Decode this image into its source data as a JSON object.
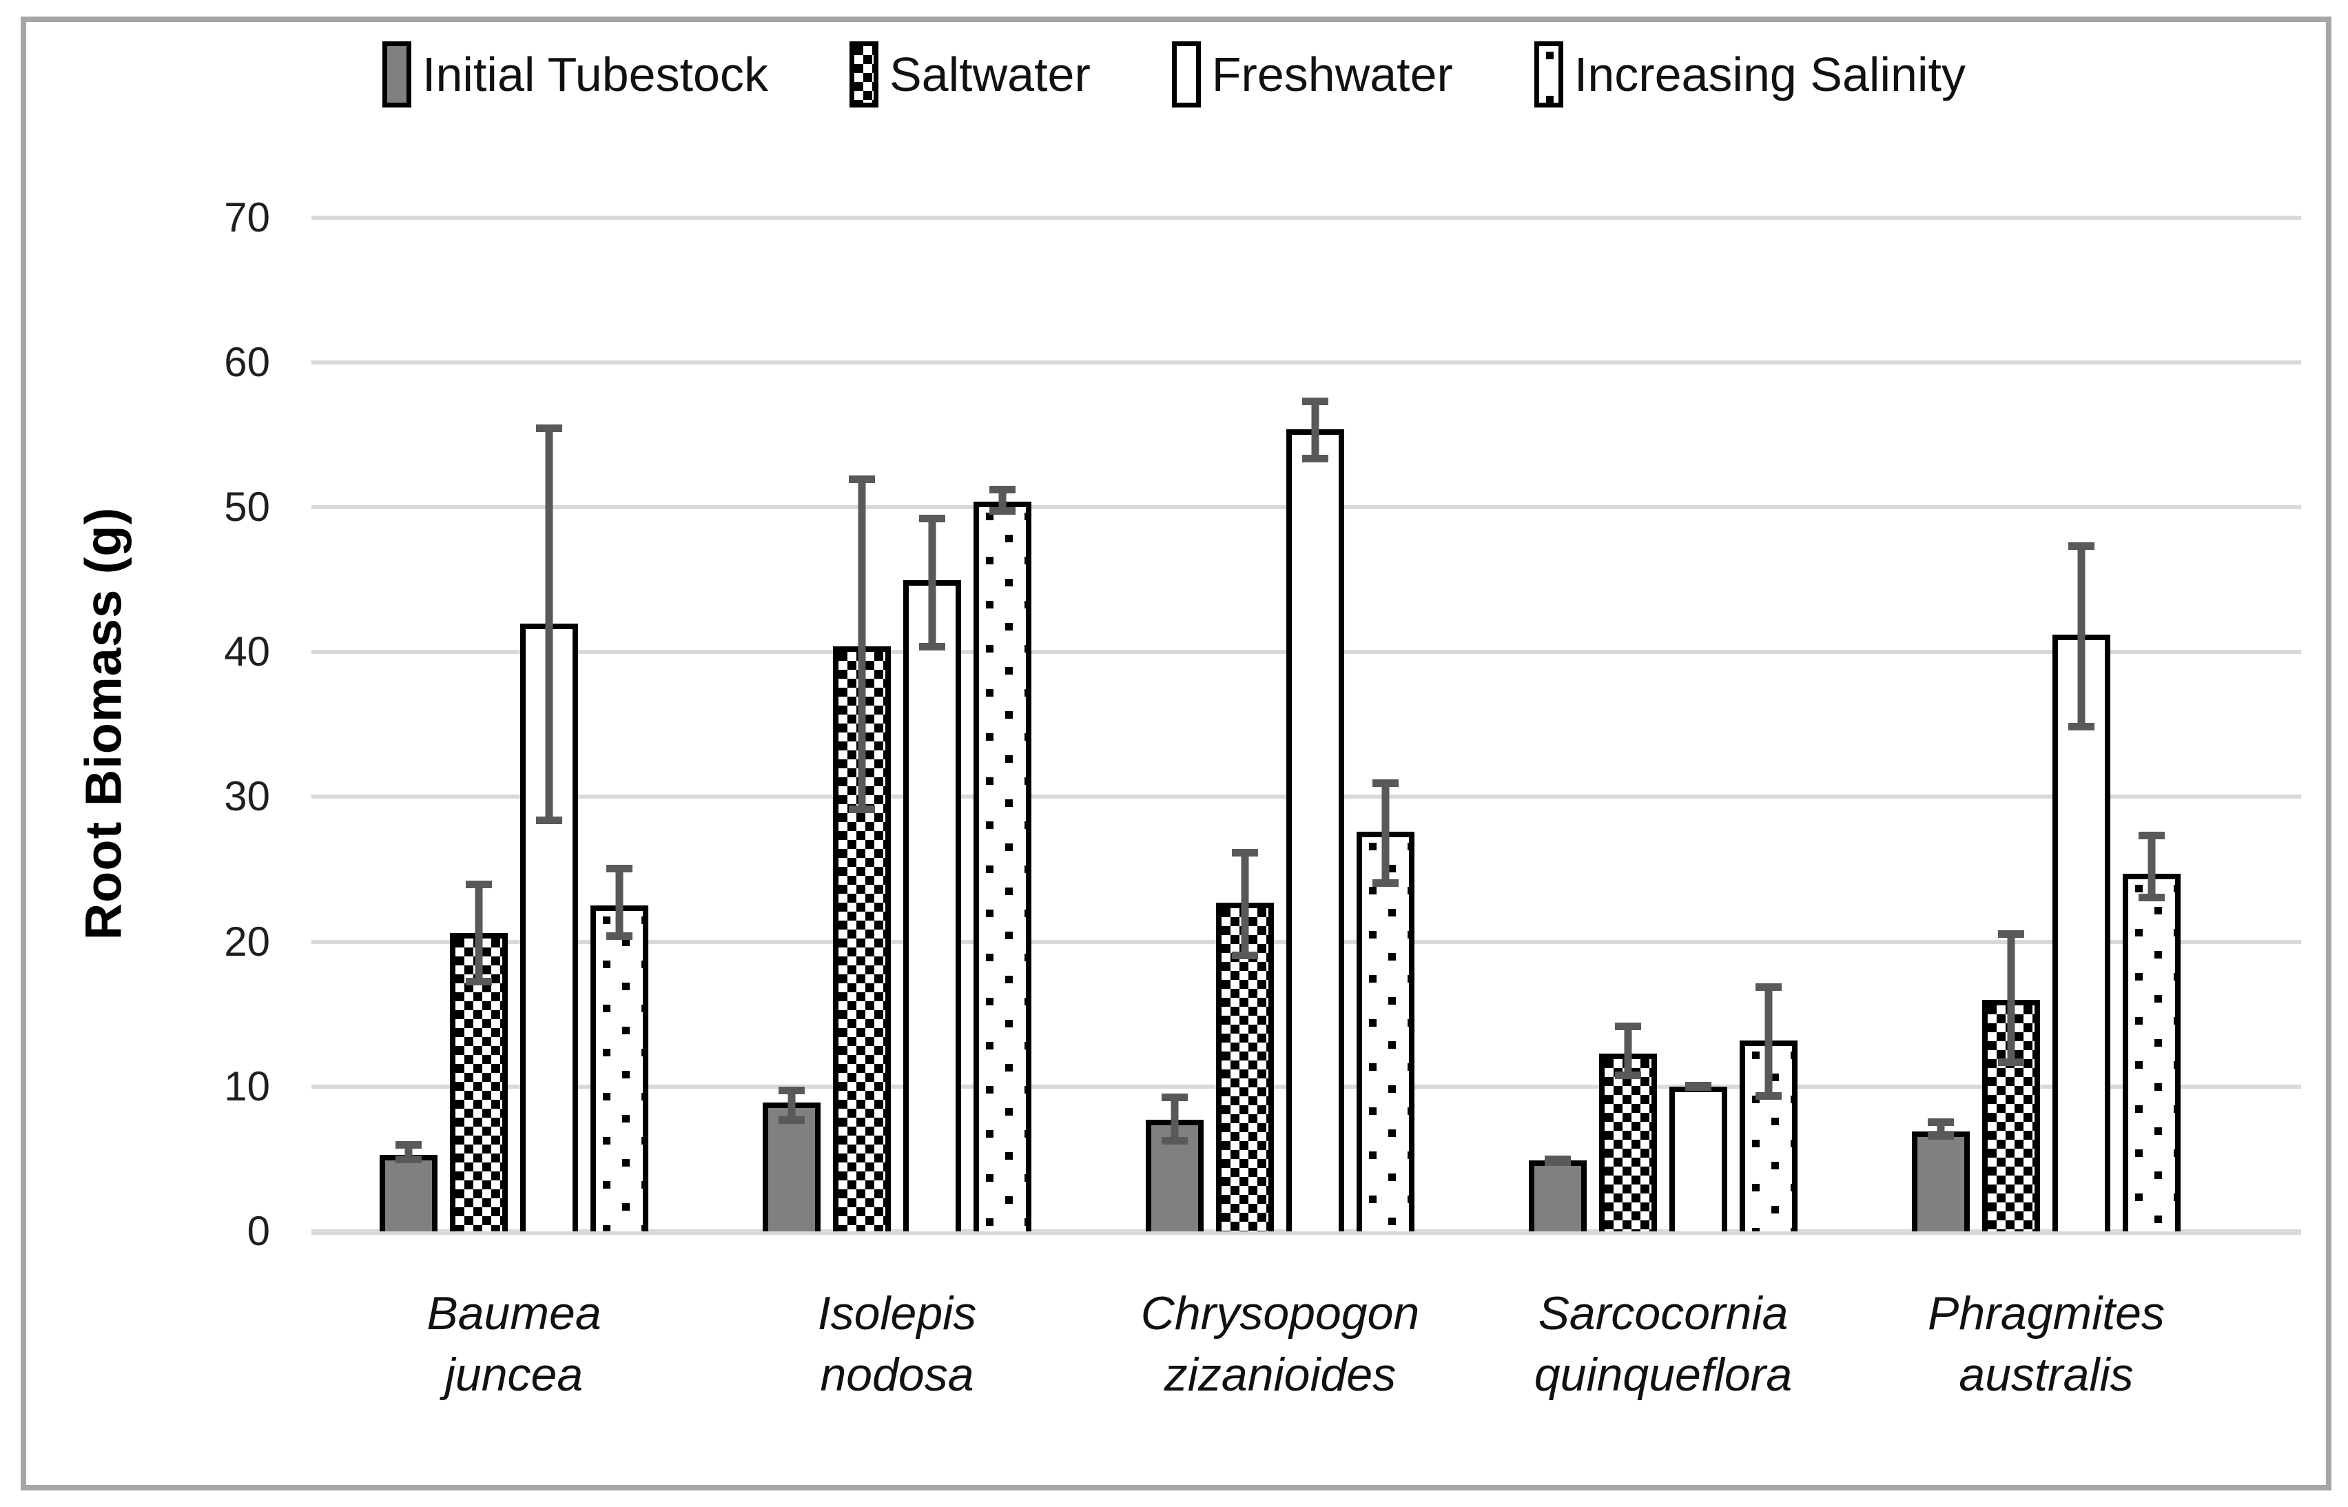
{
  "y_axis": {
    "title": "Root Biomass (g)",
    "tick_labels": [
      "0",
      "10",
      "20",
      "30",
      "40",
      "50",
      "60",
      "70"
    ]
  },
  "chart_data": {
    "type": "bar",
    "title": "",
    "xlabel": "",
    "ylabel": "Root Biomass (g)",
    "ylim": [
      0,
      70
    ],
    "grid": true,
    "legend_position": "top",
    "categories": [
      "Baumea juncea",
      "Isolepis nodosa",
      "Chrysopogon zizanioides",
      "Sarcocornia quinqueflora",
      "Phragmites australis"
    ],
    "series": [
      {
        "name": "Initial Tubestock",
        "pattern": "solid-gray",
        "fill_color": "#808080",
        "values": [
          5.3,
          8.9,
          7.7,
          4.9,
          6.9
        ],
        "error_low": [
          4.7,
          7.4,
          6.0,
          4.5,
          6.3
        ],
        "error_high": [
          6.2,
          10.0,
          9.5,
          5.2,
          7.8
        ]
      },
      {
        "name": "Saltwater",
        "pattern": "checker",
        "fill_color": "#ffffff",
        "values": [
          20.6,
          40.4,
          22.7,
          12.3,
          16.0
        ],
        "error_low": [
          17.0,
          28.9,
          18.8,
          10.5,
          11.4
        ],
        "error_high": [
          24.2,
          52.2,
          26.4,
          14.4,
          20.8
        ]
      },
      {
        "name": "Freshwater",
        "pattern": "plain",
        "fill_color": "#ffffff",
        "values": [
          42.0,
          45.0,
          55.4,
          10.0,
          41.2
        ],
        "error_low": [
          28.1,
          40.1,
          53.1,
          9.8,
          34.6
        ],
        "error_high": [
          55.7,
          49.5,
          57.6,
          10.2,
          47.6
        ]
      },
      {
        "name": "Increasing Salinity",
        "pattern": "dots",
        "fill_color": "#ffffff",
        "values": [
          22.5,
          50.4,
          27.6,
          13.2,
          24.7
        ],
        "error_low": [
          20.1,
          49.5,
          23.8,
          9.1,
          22.8
        ],
        "error_high": [
          25.3,
          51.5,
          31.2,
          17.1,
          27.6
        ]
      }
    ],
    "colors": {
      "bar_fill_gray": "#808080",
      "bar_border": "#000000",
      "error_bar": "#595959",
      "gridline": "#d9d9d9",
      "frame_border": "#a6a6a6",
      "text": "#111111"
    }
  }
}
